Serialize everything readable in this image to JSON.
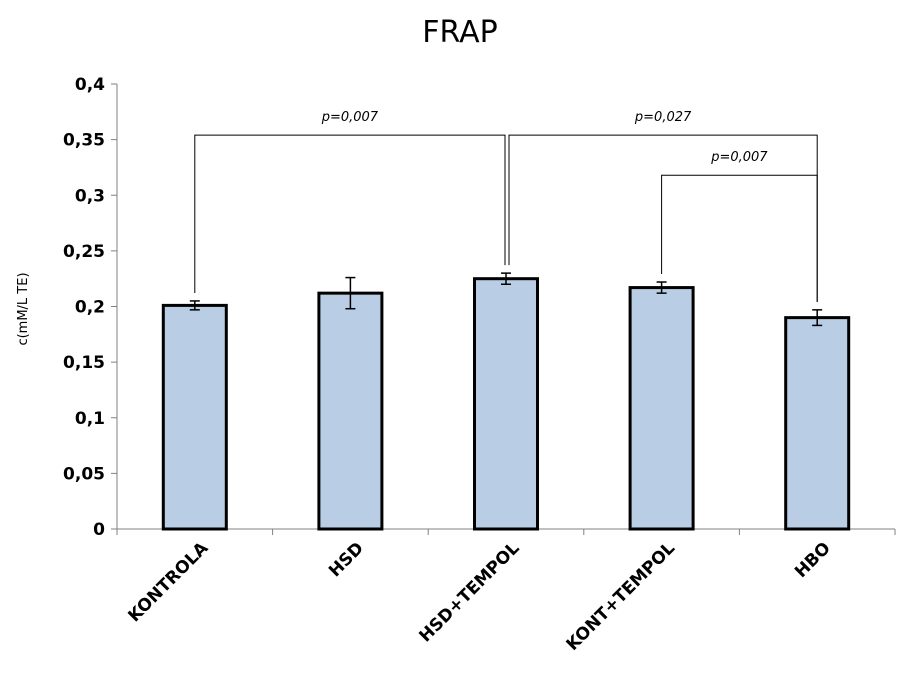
{
  "chart_data": {
    "type": "bar",
    "title": "FRAP",
    "xlabel": "",
    "ylabel": "c(mM/L TE)",
    "ylim": [
      0,
      0.4
    ],
    "yticks": [
      0,
      0.05,
      0.1,
      0.15,
      0.2,
      0.25,
      0.3,
      0.35,
      0.4
    ],
    "ytick_labels": [
      "0",
      "0,05",
      "0,1",
      "0,15",
      "0,2",
      "0,25",
      "0,3",
      "0,35",
      "0,4"
    ],
    "categories": [
      "KONTROLA",
      "HSD",
      "HSD+TEMPOL",
      "KONT+TEMPOL",
      "HBO"
    ],
    "values": [
      0.201,
      0.212,
      0.225,
      0.217,
      0.19
    ],
    "errors": [
      0.004,
      0.014,
      0.005,
      0.005,
      0.007
    ],
    "grid": false,
    "colors": {
      "bar_fill": "#b9cde5",
      "bar_stroke": "#000000"
    },
    "annotations": [
      {
        "text": "p=0,007",
        "from": 0,
        "to": 2,
        "bracket_y": 0.354
      },
      {
        "text": "p=0,027",
        "from": 2,
        "to": 4,
        "bracket_y": 0.354
      },
      {
        "text": "p=0,007",
        "from": 3,
        "to": 4,
        "bracket_y": 0.318
      }
    ]
  }
}
